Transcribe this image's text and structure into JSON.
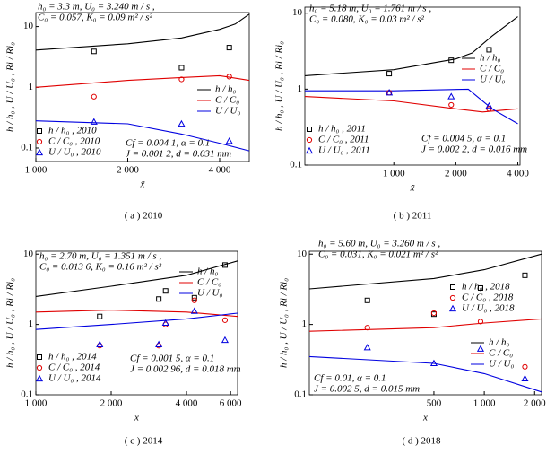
{
  "chart_data": [
    {
      "type": "line",
      "log_x": true,
      "log_y": true,
      "caption": "( a )  2010",
      "params": [
        "h₀ = 3.3 m, U₀ = 3.240 m / s ,",
        "C₀ = 0.057, K₀ = 0.09 m² / s²"
      ],
      "params2": [
        "Cf = 0.004 1, α = 0.1",
        "J = 0.001 2, d = 0.031 mm"
      ],
      "xlabel": "x̃",
      "ylabel": "h / h₀ , U / U₀ , Ri / Ri₀",
      "xlim": [
        1000,
        5000
      ],
      "ylim": [
        0.06,
        17
      ],
      "xticks": [
        {
          "value": 1000,
          "label": "1 000"
        },
        {
          "value": 2000,
          "label": "2 000"
        },
        {
          "value": 4000,
          "label": "4 000"
        }
      ],
      "yticks": [
        0.1,
        1,
        10
      ],
      "series": [
        {
          "name": "h / h₀",
          "color": "#000000",
          "mode": "line",
          "x": [
            1000,
            2000,
            3000,
            4000,
            4500,
            5000
          ],
          "values": [
            4.1,
            5.2,
            6.5,
            9,
            11,
            16
          ]
        },
        {
          "name": "C / C₀",
          "color": "#e00000",
          "mode": "line",
          "x": [
            1000,
            2000,
            3000,
            4000,
            5000
          ],
          "values": [
            1.0,
            1.3,
            1.45,
            1.55,
            1.3
          ]
        },
        {
          "name": "U / U₀",
          "color": "#0000e0",
          "mode": "line",
          "x": [
            1000,
            2000,
            3000,
            4000,
            5000
          ],
          "values": [
            0.28,
            0.25,
            0.17,
            0.12,
            0.09
          ]
        },
        {
          "name": "h / h₀ , 2010",
          "color": "#000000",
          "mode": "square",
          "x": [
            1550,
            3000,
            4300
          ],
          "values": [
            3.9,
            2.1,
            4.5
          ]
        },
        {
          "name": "C / C₀ , 2010",
          "color": "#e00000",
          "mode": "circle",
          "x": [
            1550,
            3000,
            4300
          ],
          "values": [
            0.7,
            1.35,
            1.5
          ]
        },
        {
          "name": "U / U₀ , 2010",
          "color": "#0000e0",
          "mode": "triangle",
          "x": [
            1550,
            3000,
            4300
          ],
          "values": [
            0.27,
            0.25,
            0.13
          ]
        }
      ]
    },
    {
      "type": "line",
      "log_x": true,
      "log_y": true,
      "caption": "( b )  2011",
      "params": [
        "h₀ = 5.18 m, U₀ = 1.761 m / s ,",
        "C₀ = 0.080, K₀ = 0.03 m² / s²"
      ],
      "params2": [
        "Cf = 0.004 5, α = 0.1",
        "J = 0.002 2, d = 0.016 mm"
      ],
      "xlabel": "x̃",
      "ylabel": "h / h₀ , U / U₀ , Ri / Ri₀",
      "xlim": [
        370,
        4100
      ],
      "ylim": [
        0.1,
        12
      ],
      "xticks": [
        {
          "value": 1000,
          "label": "1 000"
        },
        {
          "value": 2000,
          "label": "2 000"
        },
        {
          "value": 4000,
          "label": "4 000"
        }
      ],
      "yticks": [
        0.1,
        1,
        10
      ],
      "series": [
        {
          "name": "h / h₀",
          "color": "#000000",
          "mode": "line",
          "x": [
            370,
            1000,
            2000,
            2400,
            3000,
            4000
          ],
          "values": [
            1.5,
            1.8,
            2.5,
            3,
            5,
            9
          ]
        },
        {
          "name": "C / C₀",
          "color": "#e00000",
          "mode": "line",
          "x": [
            370,
            1000,
            2000,
            2700,
            4000
          ],
          "values": [
            0.8,
            0.7,
            0.55,
            0.5,
            0.55
          ]
        },
        {
          "name": "U / U₀",
          "color": "#0000e0",
          "mode": "line",
          "x": [
            370,
            1000,
            2300,
            3000,
            4000
          ],
          "values": [
            0.95,
            0.95,
            1.0,
            0.55,
            0.35
          ]
        },
        {
          "name": "h / h₀ , 2011",
          "color": "#000000",
          "mode": "square",
          "x": [
            950,
            1900,
            2900
          ],
          "values": [
            1.6,
            2.4,
            3.3
          ]
        },
        {
          "name": "C / C₀ , 2011",
          "color": "#e00000",
          "mode": "circle",
          "x": [
            950,
            1900,
            2900
          ],
          "values": [
            0.9,
            0.62,
            0.55
          ]
        },
        {
          "name": "U / U₀ , 2011",
          "color": "#0000e0",
          "mode": "triangle",
          "x": [
            950,
            1900,
            2900
          ],
          "values": [
            0.9,
            0.8,
            0.6
          ]
        }
      ]
    },
    {
      "type": "line",
      "log_x": true,
      "log_y": true,
      "caption": "( c )  2014",
      "params": [
        "h₀ = 2.70 m, U₀ = 1.351 m / s ,",
        "C₀ = 0.013 6, K₀ = 0.16 m² / s²"
      ],
      "params2": [
        "Cf = 0.001 5, α = 0.1",
        "J = 0.002 96, d = 0.018 mm"
      ],
      "xlabel": "x̃",
      "ylabel": "h / h₀ , U / U₀ , Ri / Ri₀",
      "xlim": [
        1000,
        6400
      ],
      "ylim": [
        0.1,
        11
      ],
      "xticks": [
        {
          "value": 1000,
          "label": "1 000"
        },
        {
          "value": 2000,
          "label": "2 000"
        },
        {
          "value": 4000,
          "label": "4 000"
        },
        {
          "value": 6000,
          "label": "6 000"
        }
      ],
      "yticks": [
        0.1,
        1,
        10
      ],
      "series": [
        {
          "name": "h / h₀",
          "color": "#000000",
          "mode": "line",
          "x": [
            1000,
            2000,
            4000,
            6400
          ],
          "values": [
            2.5,
            3.5,
            5,
            8
          ]
        },
        {
          "name": "C / C₀",
          "color": "#e00000",
          "mode": "line",
          "x": [
            1000,
            2000,
            4000,
            6400
          ],
          "values": [
            1.5,
            1.6,
            1.5,
            1.3
          ]
        },
        {
          "name": "U / U₀",
          "color": "#0000e0",
          "mode": "line",
          "x": [
            1000,
            2000,
            4000,
            6400
          ],
          "values": [
            0.85,
            1.0,
            1.2,
            1.45
          ]
        },
        {
          "name": "h / h₀ , 2014",
          "color": "#000000",
          "mode": "square",
          "x": [
            1800,
            3100,
            3300,
            4300,
            5700
          ],
          "values": [
            1.3,
            2.3,
            3.0,
            2.4,
            7
          ]
        },
        {
          "name": "C / C₀ , 2014",
          "color": "#e00000",
          "mode": "circle",
          "x": [
            1800,
            3100,
            3300,
            4300,
            5700
          ],
          "values": [
            0.5,
            0.5,
            1.0,
            2.2,
            1.15
          ]
        },
        {
          "name": "U / U₀ , 2014",
          "color": "#0000e0",
          "mode": "triangle",
          "x": [
            1800,
            3100,
            3300,
            4300,
            5700
          ],
          "values": [
            0.52,
            0.52,
            1.05,
            1.55,
            0.6
          ]
        }
      ]
    },
    {
      "type": "line",
      "log_x": true,
      "log_y": true,
      "caption": "( d )  2018",
      "params": [
        "h₀ = 5.60 m, U₀ = 3.260 m / s ,",
        "C₀ = 0.031, K₀ = 0.021 m² / s²"
      ],
      "params2": [
        "Cf = 0.01, α = 0.1",
        "J = 0.002 5, d = 0.015 mm"
      ],
      "xlabel": "x̃",
      "ylabel": "h / h₀ , U / U₀ , Ri / Ri₀",
      "xlim": [
        90,
        2200
      ],
      "ylim": [
        0.1,
        11
      ],
      "xticks": [
        500,
        {
          "value": 1000,
          "label": "1 000"
        },
        {
          "value": 2000,
          "label": "2 000"
        }
      ],
      "yticks": [
        0.1,
        1,
        10
      ],
      "series": [
        {
          "name": "h / h₀",
          "color": "#000000",
          "mode": "line",
          "x": [
            90,
            500,
            1000,
            2200
          ],
          "values": [
            3.2,
            4.5,
            6,
            10
          ]
        },
        {
          "name": "C / C₀",
          "color": "#e00000",
          "mode": "line",
          "x": [
            90,
            500,
            1000,
            2200
          ],
          "values": [
            0.8,
            0.9,
            1.05,
            1.2
          ]
        },
        {
          "name": "U / U₀",
          "color": "#0000e0",
          "mode": "line",
          "x": [
            90,
            500,
            1000,
            2200
          ],
          "values": [
            0.35,
            0.28,
            0.2,
            0.11
          ]
        },
        {
          "name": "h / h₀ , 2018",
          "color": "#000000",
          "mode": "square",
          "x": [
            200,
            500,
            950,
            1750
          ],
          "values": [
            2.2,
            1.4,
            3.3,
            5
          ]
        },
        {
          "name": "C / C₀ , 2018",
          "color": "#e00000",
          "mode": "circle",
          "x": [
            200,
            500,
            950,
            1750
          ],
          "values": [
            0.9,
            1.45,
            1.1,
            0.25
          ]
        },
        {
          "name": "U / U₀ , 2018",
          "color": "#0000e0",
          "mode": "triangle",
          "x": [
            200,
            500,
            950,
            1750
          ],
          "values": [
            0.47,
            0.28,
            0.45,
            0.17
          ]
        }
      ]
    }
  ]
}
